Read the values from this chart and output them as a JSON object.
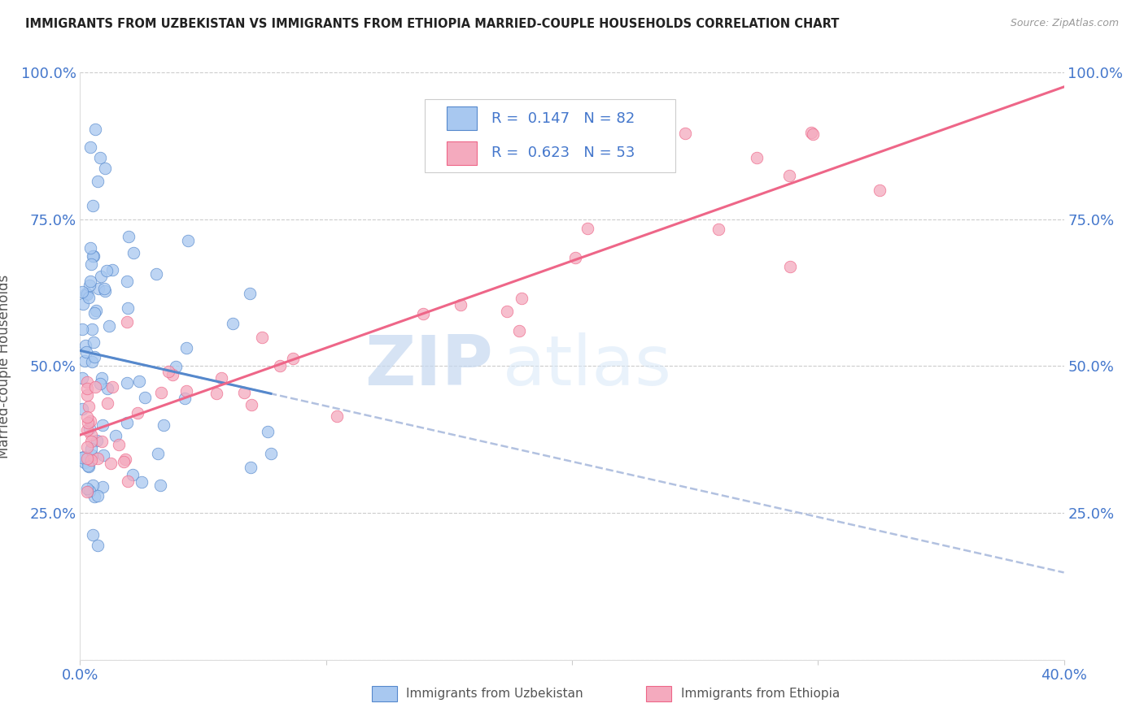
{
  "title": "IMMIGRANTS FROM UZBEKISTAN VS IMMIGRANTS FROM ETHIOPIA MARRIED-COUPLE HOUSEHOLDS CORRELATION CHART",
  "source": "Source: ZipAtlas.com",
  "ylabel": "Married-couple Households",
  "xmin": 0.0,
  "xmax": 0.4,
  "ymin": 0.0,
  "ymax": 1.0,
  "legend_r1": "0.147",
  "legend_n1": "82",
  "legend_r2": "0.623",
  "legend_n2": "53",
  "color_uzbekistan": "#A8C8F0",
  "color_ethiopia": "#F4AABE",
  "color_trend_uzbekistan": "#5588CC",
  "color_trend_ethiopia": "#EE6688",
  "color_axis_labels": "#4477CC",
  "color_text_dark": "#333333",
  "watermark_zip": "ZIP",
  "watermark_atlas": "atlas",
  "label1": "Immigrants from Uzbekistan",
  "label2": "Immigrants from Ethiopia",
  "figsize": [
    14.06,
    8.92
  ],
  "dpi": 100
}
